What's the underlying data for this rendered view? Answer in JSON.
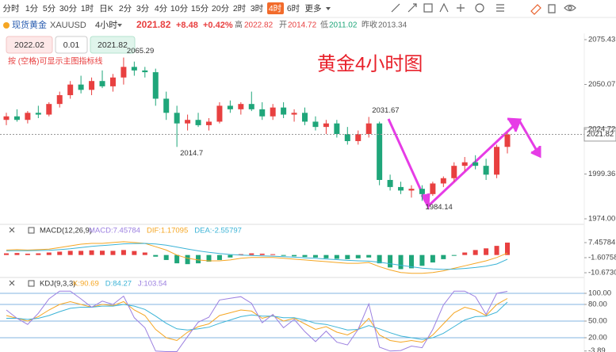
{
  "toolbar": {
    "periods": [
      "分时",
      "1分",
      "5分",
      "30分",
      "1时",
      "日K",
      "2分",
      "3分",
      "4分",
      "10分",
      "15分",
      "20分",
      "2时",
      "3时",
      "4时",
      "6时",
      "更多"
    ],
    "active": "4时"
  },
  "header": {
    "name": "现货黄金",
    "symbol": "XAUUSD",
    "period": "4小时",
    "price": "2021.82",
    "change": "+8.48",
    "change_pct": "+0.42%",
    "high_label": "高",
    "high": "2022.82",
    "open_label": "开",
    "open": "2014.72",
    "low_label": "低",
    "low": "2011.02",
    "prev_label": "昨收",
    "prev": "2013.34"
  },
  "order": {
    "sell": "2022.02",
    "lot": "0.01",
    "buy": "2021.82"
  },
  "hint": "按 (空格)可显示主图指标线",
  "chart_data": [
    {
      "type": "candlestick",
      "title": "黄金4小时图",
      "up_color": "#e84040",
      "down_color": "#1fa67a",
      "ylim": [
        1974,
        2075.43
      ],
      "yticks": [
        2075.43,
        2050.07,
        2024.72,
        1999.36,
        {
          "value": 1974,
          "label": "1974.00"
        }
      ],
      "last_price": 2021.82,
      "annotations": [
        2065.29,
        2014.7,
        2031.67,
        1984.14
      ],
      "ohlc": [
        [
          2030,
          2034,
          2027,
          2032
        ],
        [
          2032,
          2036,
          2029,
          2030
        ],
        [
          2030,
          2035,
          2028,
          2034
        ],
        [
          2034,
          2038,
          2031,
          2033
        ],
        [
          2033,
          2040,
          2032,
          2039
        ],
        [
          2039,
          2046,
          2037,
          2044
        ],
        [
          2044,
          2052,
          2042,
          2050
        ],
        [
          2050,
          2055,
          2045,
          2047
        ],
        [
          2047,
          2054,
          2044,
          2052
        ],
        [
          2052,
          2058,
          2048,
          2049
        ],
        [
          2049,
          2056,
          2046,
          2054
        ],
        [
          2054,
          2065.29,
          2050,
          2060
        ],
        [
          2060,
          2063,
          2055,
          2058
        ],
        [
          2058,
          2060,
          2054,
          2057
        ],
        [
          2057,
          2059,
          2038,
          2042
        ],
        [
          2042,
          2046,
          2030,
          2034
        ],
        [
          2034,
          2038,
          2014.7,
          2028
        ],
        [
          2028,
          2033,
          2024,
          2030
        ],
        [
          2030,
          2034,
          2026,
          2027
        ],
        [
          2027,
          2031,
          2024,
          2029
        ],
        [
          2029,
          2040,
          2028,
          2038
        ],
        [
          2038,
          2041,
          2034,
          2036
        ],
        [
          2036,
          2040,
          2033,
          2039
        ],
        [
          2039,
          2046,
          2035,
          2036
        ],
        [
          2036,
          2040,
          2030,
          2032
        ],
        [
          2032,
          2039,
          2030,
          2037
        ],
        [
          2037,
          2040,
          2031,
          2033
        ],
        [
          2033,
          2036,
          2029,
          2034
        ],
        [
          2034,
          2037,
          2027,
          2029
        ],
        [
          2029,
          2032,
          2024,
          2026
        ],
        [
          2026,
          2030,
          2022,
          2028
        ],
        [
          2028,
          2030,
          2020,
          2022
        ],
        [
          2022,
          2026,
          2016,
          2018
        ],
        [
          2018,
          2024,
          2016,
          2022
        ],
        [
          2022,
          2031.67,
          2020,
          2028
        ],
        [
          2028,
          2029,
          1993,
          1996
        ],
        [
          1996,
          1999,
          1990,
          1992
        ],
        [
          1992,
          1995,
          1988,
          1990
        ],
        [
          1990,
          1993,
          1986,
          1991
        ],
        [
          1991,
          1993,
          1984.14,
          1988
        ],
        [
          1988,
          1995,
          1987,
          1994
        ],
        [
          1994,
          1998,
          1992,
          1997
        ],
        [
          1997,
          2006,
          1995,
          2004
        ],
        [
          2004,
          2009,
          2001,
          2006
        ],
        [
          2006,
          2010,
          2002,
          2004
        ],
        [
          2004,
          2008,
          1996,
          1999
        ],
        [
          1999,
          2016,
          1997,
          2014.72
        ],
        [
          2014.72,
          2022.82,
          2011.02,
          2021.82
        ]
      ]
    },
    {
      "type": "macd",
      "title": "MACD(12,26,9)",
      "up_color": "#e84040",
      "down_color": "#1fa67a",
      "ylim": [
        -12,
        10
      ],
      "yticks": [
        7.45784,
        -1.60758,
        {
          "value": -10.673,
          "label": "-10.67300"
        }
      ],
      "series": [
        {
          "name": "MACD:7.45784",
          "color": "#9b7fe0",
          "values": [
            1,
            1.2,
            0.8,
            1,
            1.5,
            2,
            2.5,
            2.5,
            2.8,
            2.6,
            2.5,
            3,
            2.4,
            1.5,
            -1,
            -3,
            -5,
            -5.5,
            -5,
            -4,
            -3,
            -1.5,
            0.5,
            1,
            0.8,
            0.5,
            -0.5,
            -0.8,
            -1.2,
            -1.5,
            -2,
            -2.3,
            -2.5,
            -2,
            -1.5,
            -5,
            -7.5,
            -8.5,
            -8,
            -6.5,
            -4.5,
            -2.5,
            -0.5,
            1.5,
            3,
            4,
            5.5,
            7.45784
          ]
        },
        {
          "name": "DIF:1.17095",
          "color": "#f5a623",
          "values": [
            3,
            3.2,
            3,
            3.2,
            3.5,
            4.5,
            5.5,
            6.5,
            7,
            7,
            7.5,
            8,
            7.5,
            7,
            5,
            3,
            0,
            -2,
            -3,
            -3.5,
            -3.5,
            -3,
            -2,
            -1.5,
            -1.5,
            -1.5,
            -2,
            -2.5,
            -3,
            -3.5,
            -4,
            -4.5,
            -5,
            -5,
            -4.5,
            -7,
            -9,
            -10.5,
            -11,
            -11,
            -10.5,
            -9.5,
            -8,
            -6.5,
            -5,
            -3.5,
            -1.5,
            1.17095
          ]
        },
        {
          "name": "DEA:-2.55797",
          "color": "#3bb3d6",
          "values": [
            2.5,
            2.6,
            2.6,
            2.7,
            2.8,
            3.2,
            3.8,
            4.5,
            5.2,
            5.7,
            6.2,
            6.7,
            6.9,
            7,
            6.6,
            5.9,
            4.8,
            3.6,
            2.5,
            1.6,
            0.9,
            0.3,
            0,
            -0.3,
            -0.5,
            -0.7,
            -1,
            -1.3,
            -1.7,
            -2,
            -2.4,
            -2.8,
            -3.2,
            -3.5,
            -3.7,
            -4.3,
            -5.2,
            -6.2,
            -7.1,
            -7.9,
            -8.4,
            -8.6,
            -8.5,
            -8.1,
            -7.5,
            -6.7,
            -5.4,
            -2.55797
          ]
        }
      ]
    },
    {
      "type": "kdj",
      "title": "KDJ(9,3,3)",
      "grid_color": "#5a9bd8",
      "ylim": [
        -5,
        105
      ],
      "yticks": [
        {
          "value": 100,
          "label": "100.00"
        },
        {
          "value": 80,
          "label": "80.00"
        },
        {
          "value": 50,
          "label": "50.00"
        },
        {
          "value": 20,
          "label": "20.00"
        },
        -3.89
      ],
      "grid": [
        100,
        80,
        50,
        20
      ],
      "series": [
        {
          "name": "K:90.69",
          "color": "#f5a623",
          "values": [
            60,
            55,
            50,
            58,
            70,
            80,
            85,
            80,
            75,
            80,
            78,
            85,
            70,
            60,
            35,
            20,
            15,
            30,
            40,
            45,
            60,
            65,
            70,
            68,
            55,
            60,
            50,
            55,
            45,
            35,
            40,
            30,
            25,
            35,
            55,
            25,
            15,
            12,
            15,
            12,
            25,
            45,
            65,
            75,
            70,
            60,
            80,
            90.69
          ]
        },
        {
          "name": "D:84.27",
          "color": "#3bb3d6",
          "values": [
            55,
            55,
            53,
            55,
            60,
            67,
            73,
            75,
            75,
            77,
            77,
            80,
            77,
            71,
            59,
            46,
            36,
            34,
            36,
            39,
            46,
            52,
            58,
            61,
            59,
            59,
            56,
            56,
            52,
            46,
            44,
            39,
            34,
            35,
            42,
            36,
            29,
            23,
            20,
            17,
            20,
            28,
            40,
            52,
            58,
            59,
            66,
            84.27
          ]
        },
        {
          "name": "J:103.54",
          "color": "#9b7fe0",
          "values": [
            70,
            55,
            44,
            64,
            90,
            104,
            104,
            90,
            75,
            86,
            80,
            95,
            56,
            38,
            -4,
            -5,
            -5,
            22,
            48,
            57,
            88,
            91,
            94,
            82,
            47,
            62,
            38,
            53,
            31,
            13,
            32,
            12,
            7,
            35,
            81,
            3,
            -4,
            -3,
            5,
            2,
            35,
            79,
            104,
            104,
            94,
            62,
            100,
            103.54
          ]
        }
      ]
    }
  ]
}
